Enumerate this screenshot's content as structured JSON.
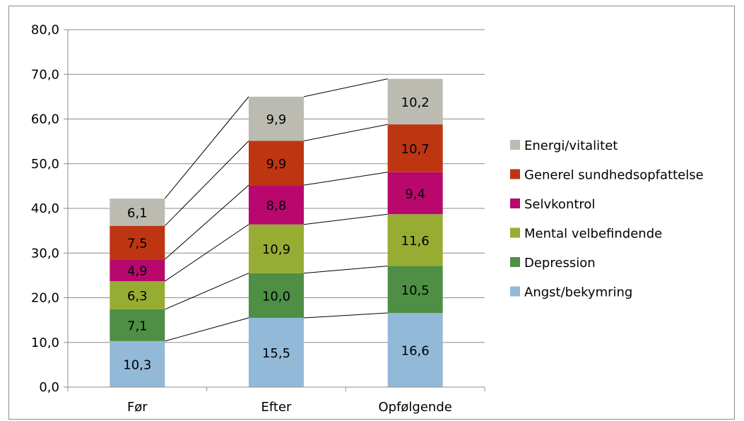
{
  "chart_data": {
    "type": "bar",
    "stacked": true,
    "categories": [
      "Før",
      "Efter",
      "Opfølgende"
    ],
    "series": [
      {
        "name": "Angst/bekymring",
        "values": [
          10.3,
          15.5,
          16.6
        ],
        "labels": [
          "10,3",
          "15,5",
          "16,6"
        ],
        "color": "#93b9d9"
      },
      {
        "name": "Depression",
        "values": [
          7.1,
          10.0,
          10.5
        ],
        "labels": [
          "7,1",
          "10,0",
          "10,5"
        ],
        "color": "#4e8f45"
      },
      {
        "name": "Mental velbefindende",
        "values": [
          6.3,
          10.9,
          11.6
        ],
        "labels": [
          "6,3",
          "10,9",
          "11,6"
        ],
        "color": "#97ac33"
      },
      {
        "name": "Selvkontrol",
        "values": [
          4.9,
          8.8,
          9.4
        ],
        "labels": [
          "4,9",
          "8,8",
          "9,4"
        ],
        "color": "#b8086e"
      },
      {
        "name": "Generel sundhedsopfattelse",
        "values": [
          7.5,
          9.9,
          10.7
        ],
        "labels": [
          "7,5",
          "9,9",
          "10,7"
        ],
        "color": "#be3512"
      },
      {
        "name": "Energi/vitalitet",
        "values": [
          6.1,
          9.9,
          10.2
        ],
        "labels": [
          "6,1",
          "9,9",
          "10,2"
        ],
        "color": "#bcbbb2"
      }
    ],
    "ylim": [
      0,
      80
    ],
    "yticks": [
      "0,0",
      "10,0",
      "20,0",
      "30,0",
      "40,0",
      "50,0",
      "60,0",
      "70,0",
      "80,0"
    ],
    "grid": true,
    "series_lines": true,
    "legend_position": "right",
    "title": "",
    "xlabel": "",
    "ylabel": ""
  }
}
